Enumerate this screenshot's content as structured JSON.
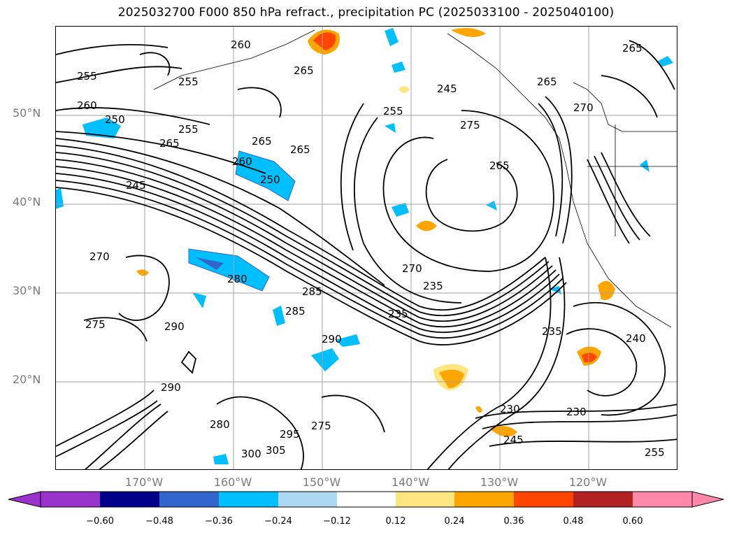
{
  "title": "2025032700 F000 850 hPa refract., precipitation PC (2025033100 - 2025040100)",
  "lat_labels": [
    "50°N",
    "40°N",
    "30°N",
    "20°N"
  ],
  "lon_labels": [
    "170°W",
    "160°W",
    "150°W",
    "140°W",
    "130°W",
    "120°W"
  ],
  "colorbar": {
    "ticks": [
      "−0.60",
      "−0.48",
      "−0.36",
      "−0.24",
      "−0.12",
      "0.12",
      "0.24",
      "0.36",
      "0.48",
      "0.60"
    ],
    "colors": [
      "#9933cc",
      "#00008b",
      "#3366cc",
      "#00bfff",
      "#add8f4",
      "#ffffff",
      "#ffe680",
      "#ffa500",
      "#ff4500",
      "#b22222",
      "#ff88aa"
    ]
  },
  "contour_labels": [
    "260",
    "265",
    "255",
    "250",
    "245",
    "270",
    "275",
    "280",
    "285",
    "290",
    "235",
    "240",
    "230",
    "300",
    "305",
    "295"
  ]
}
